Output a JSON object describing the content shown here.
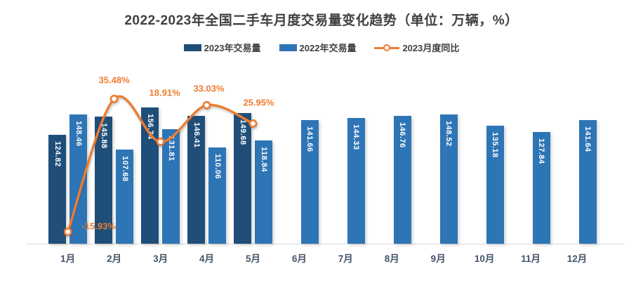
{
  "title": "2022-2023年全国二手车月度交易量变化趋势（单位：万辆，%）",
  "legend": {
    "items": [
      {
        "label": "2023年交易量",
        "marker": "bar-swatch-dark-blue"
      },
      {
        "label": "2022年交易量",
        "marker": "bar-swatch-medium-blue"
      },
      {
        "label": "2023月度同比",
        "marker": "line-swatch-orange-open-circle"
      }
    ]
  },
  "colors": {
    "bar_2023": "#1F4E79",
    "bar_2022": "#2E75B6",
    "line_yoy": "#ED7D31",
    "bar_value_text": "#FFFFFF",
    "axis_label_text": "#44546A",
    "title_text": "#404040",
    "baseline": "#D9D9D9",
    "background": "#FFFFFF"
  },
  "chart_data": {
    "type": "bar",
    "subtype": "grouped-bars-with-line-overlay",
    "title": "2022-2023年全国二手车月度交易量变化趋势（单位：万辆，%）",
    "categories": [
      "1月",
      "2月",
      "3月",
      "4月",
      "5月",
      "6月",
      "7月",
      "8月",
      "9月",
      "10月",
      "11月",
      "12月"
    ],
    "series": [
      {
        "name": "2023年交易量",
        "type": "bar",
        "color_key": "bar_2023",
        "unit": "万辆",
        "values": [
          124.82,
          145.88,
          156.74,
          146.41,
          149.68,
          null,
          null,
          null,
          null,
          null,
          null,
          null
        ],
        "labels": [
          "124.82",
          "145.88",
          "156.74",
          "146.41",
          "149.68",
          null,
          null,
          null,
          null,
          null,
          null,
          null
        ]
      },
      {
        "name": "2022年交易量",
        "type": "bar",
        "color_key": "bar_2022",
        "unit": "万辆",
        "values": [
          148.46,
          107.68,
          131.81,
          110.06,
          118.84,
          141.66,
          144.33,
          146.76,
          148.52,
          135.18,
          127.84,
          141.64
        ],
        "labels": [
          "148.46",
          "107.68",
          "131.81",
          "110.06",
          "118.84",
          "141.66",
          "144.33",
          "146.76",
          "148.52",
          "135.18",
          "127.84",
          "141.64"
        ]
      },
      {
        "name": "2023月度同比",
        "type": "line",
        "color_key": "line_yoy",
        "unit": "%",
        "marker": "open-circle",
        "values": [
          -15.93,
          35.48,
          18.91,
          33.03,
          25.95,
          null,
          null,
          null,
          null,
          null,
          null,
          null
        ],
        "labels": [
          "-15.93%",
          "35.48%",
          "18.91%",
          "33.03%",
          "25.95%",
          null,
          null,
          null,
          null,
          null,
          null,
          null
        ]
      }
    ],
    "xlabel": "",
    "ylabel": "",
    "value_axis": {
      "visible": false,
      "min": 0,
      "max_hint": 170
    },
    "secondary_axis": {
      "visible": false,
      "min_hint": -20,
      "max_hint": 40
    },
    "grid": false,
    "legend_position": "top",
    "data_label_style": {
      "bars": "rotated-90-inside-top-white",
      "line": "above-point-orange"
    }
  }
}
